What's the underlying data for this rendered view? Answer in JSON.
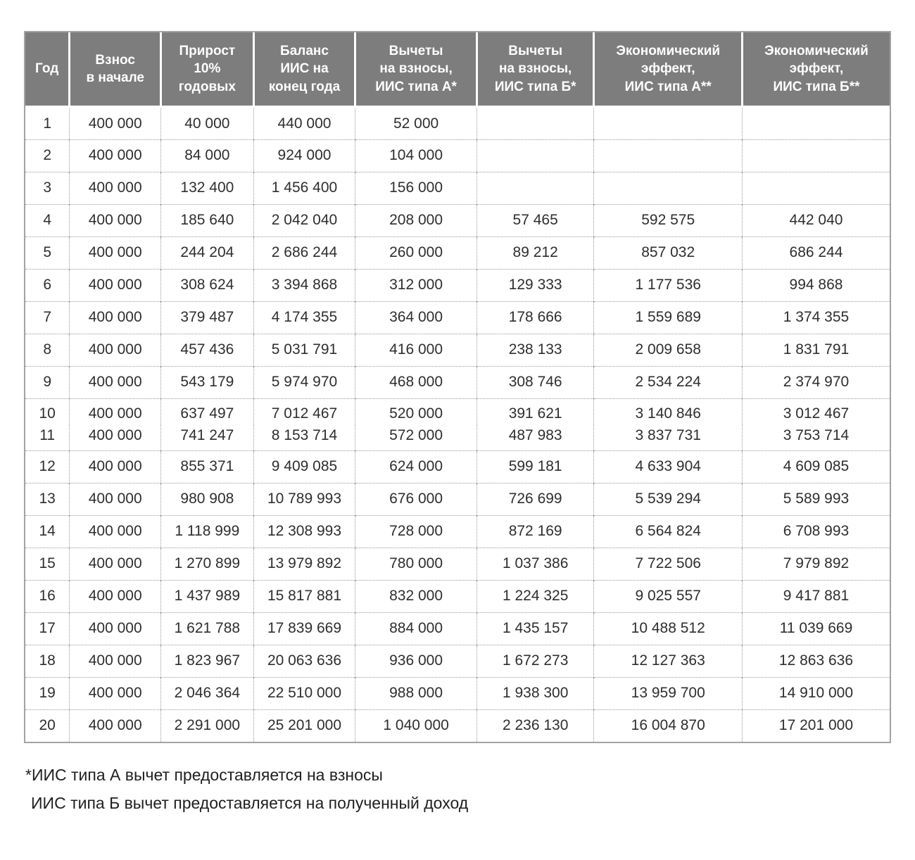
{
  "styles": {
    "header_bg": "#7d7d7d",
    "header_text": "#ffffff",
    "body_text": "#2e2e2e",
    "dotted_border": "#9a9a9a",
    "outer_border": "#a3a3a3"
  },
  "chart_data": {
    "type": "table",
    "columns": [
      "Год",
      "Взнос\nв начале",
      "Прирост\n10%\nгодовых",
      "Баланс\nИИС на\nконец года",
      "Вычеты\nна взносы,\nИИС типа А*",
      "Вычеты\nна взносы,\nИИС типа Б*",
      "Экономический\nэффект,\nИИС типа А**",
      "Экономический\nэффект,\nИИС типа Б**"
    ],
    "rows": [
      [
        "1",
        "400 000",
        "40 000",
        "440 000",
        "52 000",
        "",
        "",
        ""
      ],
      [
        "2",
        "400 000",
        "84 000",
        "924 000",
        "104 000",
        "",
        "",
        ""
      ],
      [
        "3",
        "400 000",
        "132 400",
        "1 456 400",
        "156 000",
        "",
        "",
        ""
      ],
      [
        "4",
        "400 000",
        "185 640",
        "2 042 040",
        "208 000",
        "57 465",
        "592 575",
        "442 040"
      ],
      [
        "5",
        "400 000",
        "244 204",
        "2 686 244",
        "260 000",
        "89 212",
        "857 032",
        "686 244"
      ],
      [
        "6",
        "400 000",
        "308 624",
        "3 394 868",
        "312 000",
        "129 333",
        "1 177 536",
        "994 868"
      ],
      [
        "7",
        "400 000",
        "379 487",
        "4 174 355",
        "364 000",
        "178 666",
        "1 559 689",
        "1 374 355"
      ],
      [
        "8",
        "400 000",
        "457 436",
        "5 031 791",
        "416 000",
        "238 133",
        "2 009 658",
        "1 831 791"
      ],
      [
        "9",
        "400 000",
        "543 179",
        "5 974 970",
        "468 000",
        "308 746",
        "2 534 224",
        "2 374 970"
      ],
      [
        "10",
        "400 000",
        "637 497",
        "7 012 467",
        "520 000",
        "391 621",
        "3 140 846",
        "3 012 467"
      ],
      [
        "11",
        "400 000",
        "741 247",
        "8 153 714",
        "572 000",
        "487 983",
        "3 837 731",
        "3 753 714"
      ],
      [
        "12",
        "400 000",
        "855 371",
        "9 409 085",
        "624 000",
        "599 181",
        "4 633 904",
        "4 609 085"
      ],
      [
        "13",
        "400 000",
        "980 908",
        "10 789 993",
        "676 000",
        "726 699",
        "5 539 294",
        "5 589 993"
      ],
      [
        "14",
        "400 000",
        "1 118 999",
        "12 308 993",
        "728 000",
        "872 169",
        "6 564 824",
        "6 708 993"
      ],
      [
        "15",
        "400 000",
        "1 270 899",
        "13 979 892",
        "780 000",
        "1 037 386",
        "7 722 506",
        "7 979 892"
      ],
      [
        "16",
        "400 000",
        "1 437 989",
        "15 817 881",
        "832 000",
        "1 224 325",
        "9 025 557",
        "9 417 881"
      ],
      [
        "17",
        "400 000",
        "1 621 788",
        "17 839 669",
        "884 000",
        "1 435 157",
        "10 488 512",
        "11 039 669"
      ],
      [
        "18",
        "400 000",
        "1 823 967",
        "20 063 636",
        "936 000",
        "1 672 273",
        "12 127 363",
        "12 863 636"
      ],
      [
        "19",
        "400 000",
        "2 046 364",
        "22 510 000",
        "988 000",
        "1 938 300",
        "13 959 700",
        "14 910 000"
      ],
      [
        "20",
        "400 000",
        "2 291 000",
        "25 201 000",
        "1 040 000",
        "2 236 130",
        "16 004 870",
        "17 201 000"
      ]
    ],
    "merged_row_indices": [
      9,
      10
    ],
    "grid": "dotted",
    "title": ""
  },
  "footnotes": [
    "*ИИС типа А вычет предоставляется на взносы",
    "ИИС типа Б вычет предоставляется на полученный доход"
  ]
}
